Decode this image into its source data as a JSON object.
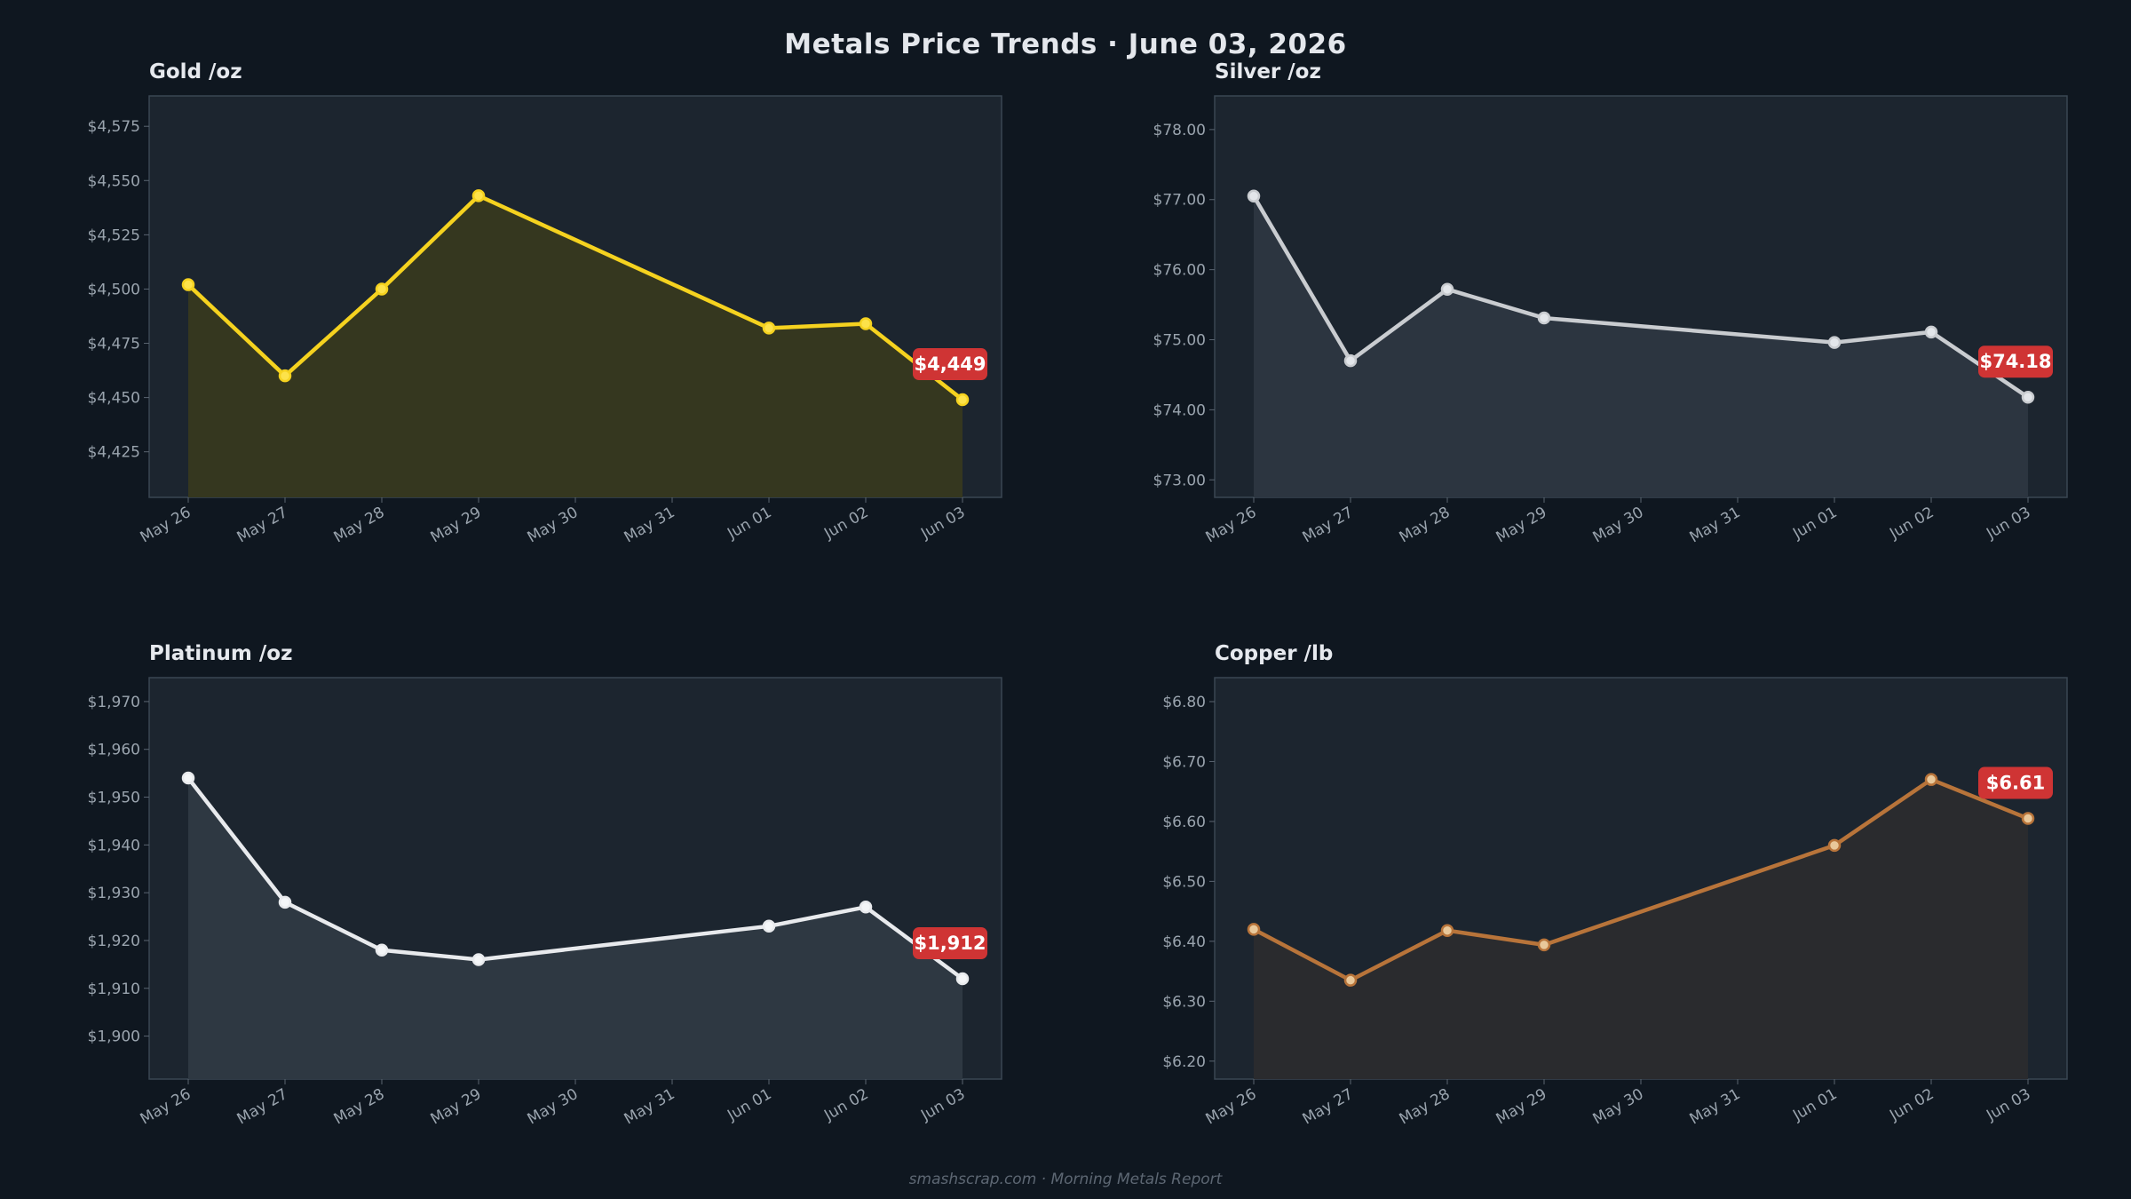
{
  "page": {
    "title": "Metals Price Trends  ·  June 03, 2026",
    "footer": "smashscrap.com  ·  Morning Metals Report"
  },
  "colors": {
    "background": "#0f1720",
    "plot_background": "#1c252f",
    "badge": "#cf3434"
  },
  "chart_data": [
    {
      "id": "gold",
      "type": "line",
      "title": "Gold  /oz",
      "color": "#f5d21f",
      "fill": "#35371f",
      "point_fill": "#fde24a",
      "x": [
        "May 26",
        "May 27",
        "May 28",
        "May 29",
        "May 30",
        "May 31",
        "Jun 01",
        "Jun 02",
        "Jun 03"
      ],
      "series": [
        {
          "values": [
            4502,
            4460,
            4500,
            4543,
            null,
            null,
            4482,
            4484,
            4449
          ]
        }
      ],
      "ylim": [
        4404,
        4589
      ],
      "yticks": [
        4425,
        4450,
        4475,
        4500,
        4525,
        4550,
        4575
      ],
      "ytick_labels": [
        "$4,425",
        "$4,450",
        "$4,475",
        "$4,500",
        "$4,525",
        "$4,550",
        "$4,575"
      ],
      "badge": "$4,449",
      "grid": false
    },
    {
      "id": "silver",
      "type": "line",
      "title": "Silver  /oz",
      "color": "#c9ccd0",
      "fill": "#2c3540",
      "point_fill": "#e3e6ea",
      "x": [
        "May 26",
        "May 27",
        "May 28",
        "May 29",
        "May 30",
        "May 31",
        "Jun 01",
        "Jun 02",
        "Jun 03"
      ],
      "series": [
        {
          "values": [
            77.05,
            74.7,
            75.72,
            75.31,
            null,
            null,
            74.96,
            75.11,
            74.18
          ]
        }
      ],
      "ylim": [
        72.75,
        78.48
      ],
      "yticks": [
        73,
        74,
        75,
        76,
        77,
        78
      ],
      "ytick_labels": [
        "$73.00",
        "$74.00",
        "$75.00",
        "$76.00",
        "$77.00",
        "$78.00"
      ],
      "badge": "$74.18",
      "grid": false
    },
    {
      "id": "platinum",
      "type": "line",
      "title": "Platinum  /oz",
      "color": "#e8eaed",
      "fill": "#2e3842",
      "point_fill": "#f4f6f8",
      "x": [
        "May 26",
        "May 27",
        "May 28",
        "May 29",
        "May 30",
        "May 31",
        "Jun 01",
        "Jun 02",
        "Jun 03"
      ],
      "series": [
        {
          "values": [
            1954,
            1928,
            1918,
            1916,
            null,
            null,
            1923,
            1927,
            1912
          ]
        }
      ],
      "ylim": [
        1891,
        1975
      ],
      "yticks": [
        1900,
        1910,
        1920,
        1930,
        1940,
        1950,
        1960,
        1970
      ],
      "ytick_labels": [
        "$1,900",
        "$1,910",
        "$1,920",
        "$1,930",
        "$1,940",
        "$1,950",
        "$1,960",
        "$1,970"
      ],
      "badge": "$1,912",
      "grid": false
    },
    {
      "id": "copper",
      "type": "line",
      "title": "Copper  /lb",
      "color": "#b8743a",
      "fill": "#2a2b2e",
      "point_fill": "#e9c89a",
      "x": [
        "May 26",
        "May 27",
        "May 28",
        "May 29",
        "May 30",
        "May 31",
        "Jun 01",
        "Jun 02",
        "Jun 03"
      ],
      "series": [
        {
          "values": [
            6.42,
            6.335,
            6.418,
            6.394,
            null,
            null,
            6.56,
            6.67,
            6.605
          ]
        }
      ],
      "ylim": [
        6.17,
        6.84
      ],
      "yticks": [
        6.2,
        6.3,
        6.4,
        6.5,
        6.6,
        6.7,
        6.8
      ],
      "ytick_labels": [
        "$6.20",
        "$6.30",
        "$6.40",
        "$6.50",
        "$6.60",
        "$6.70",
        "$6.80"
      ],
      "badge": "$6.61",
      "grid": false
    }
  ]
}
